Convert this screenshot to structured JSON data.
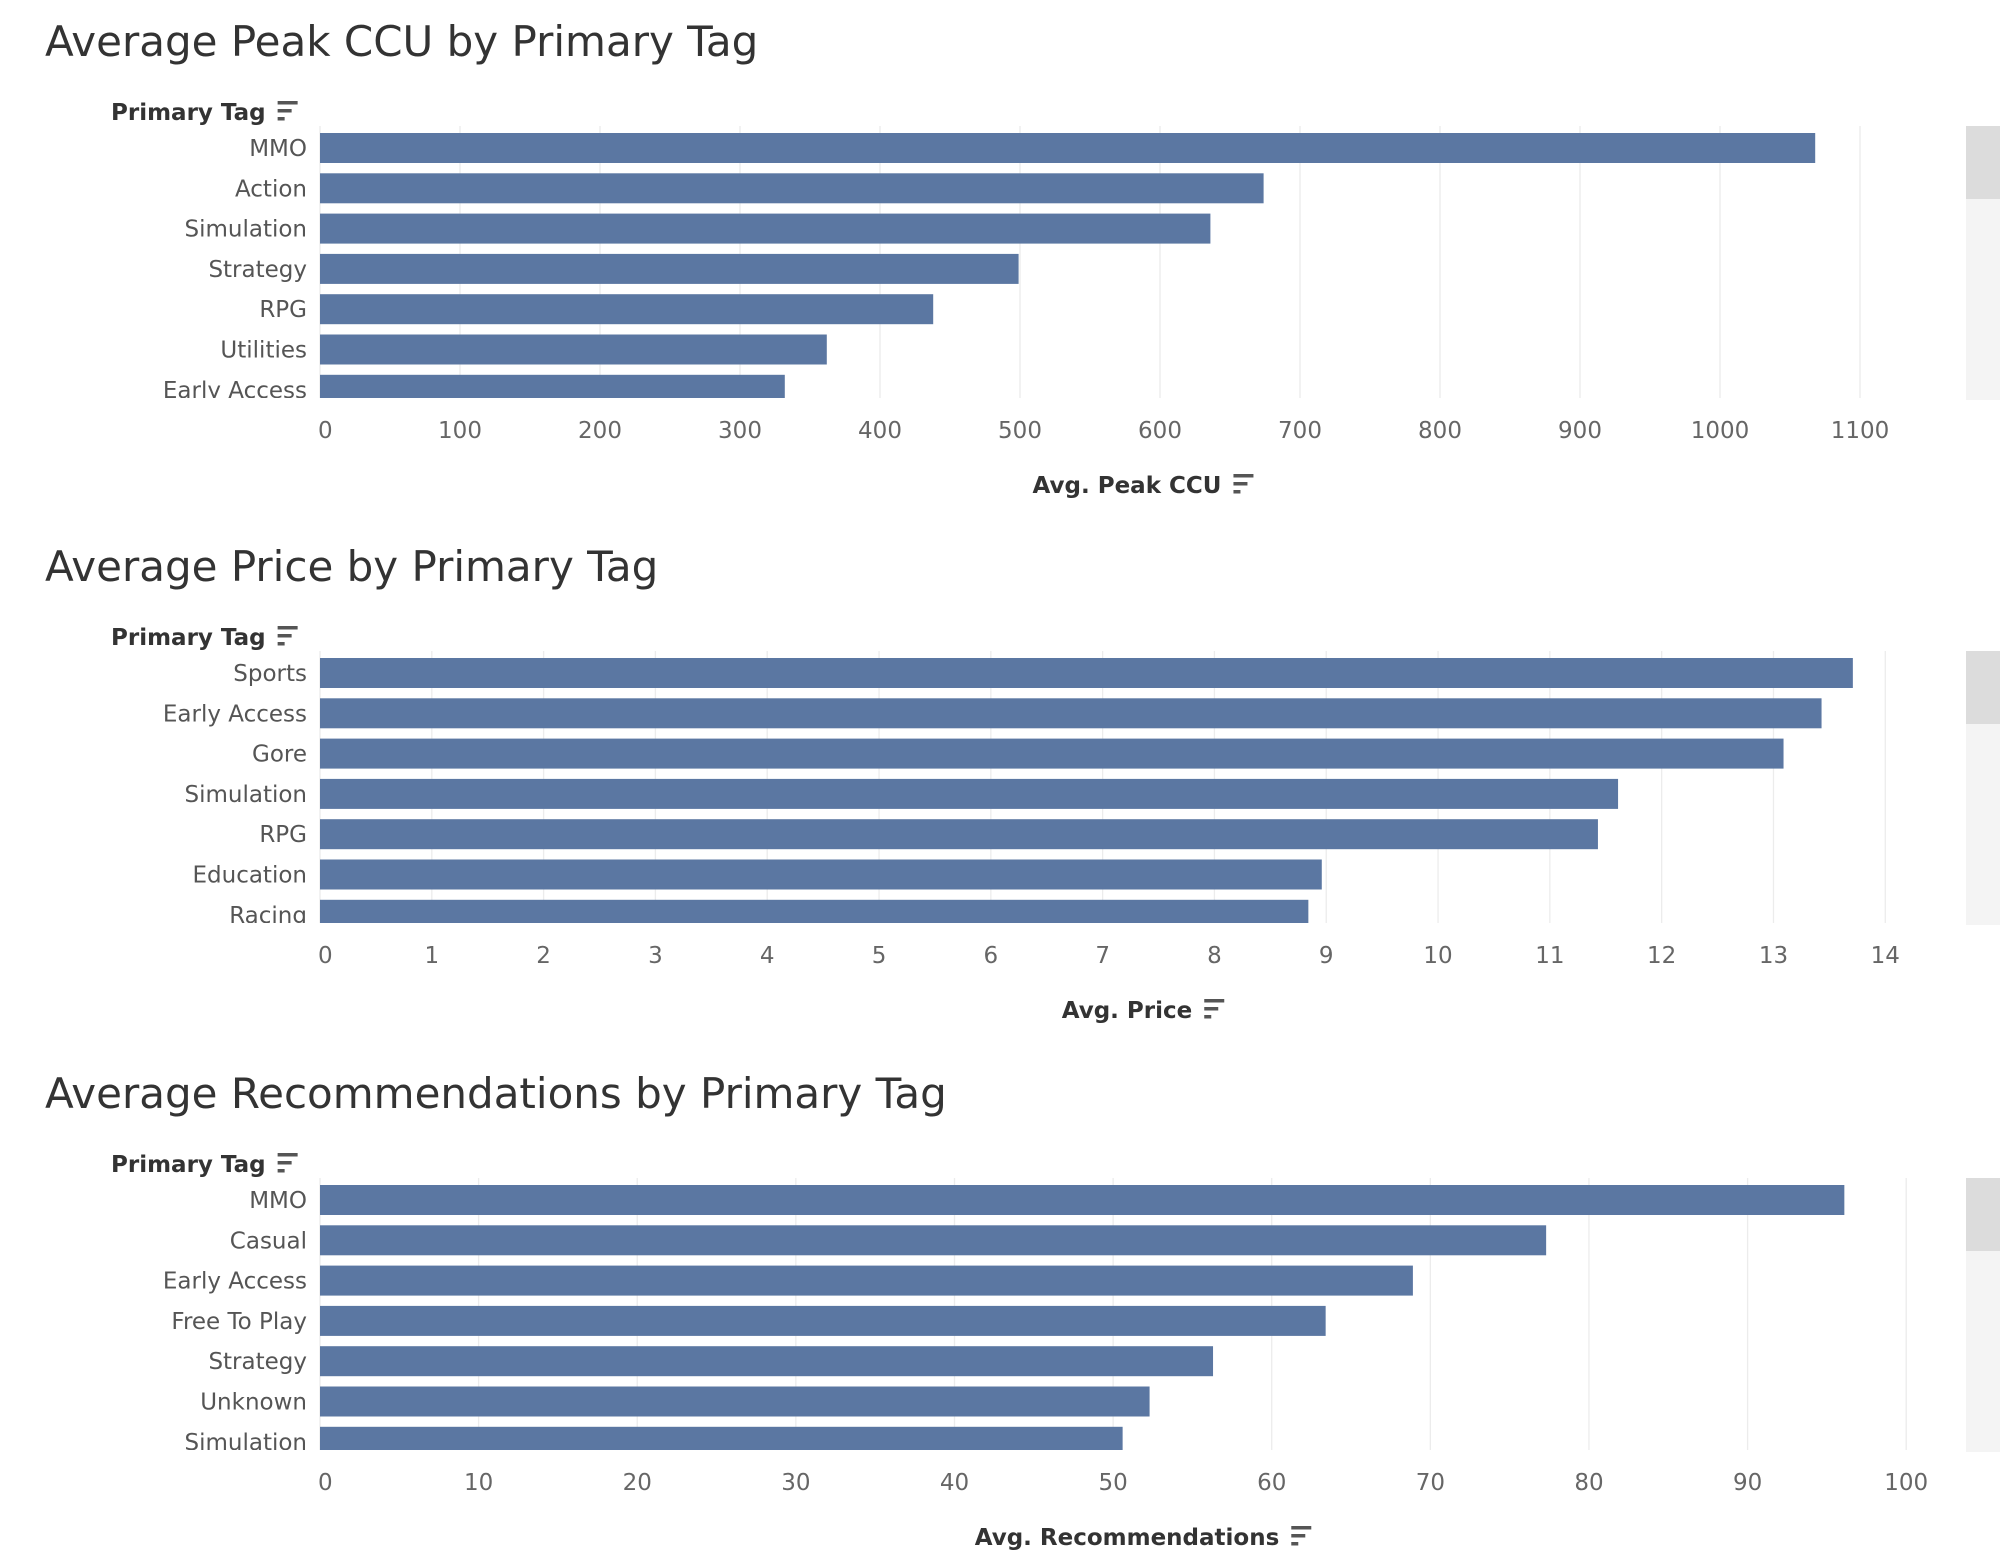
{
  "chart_data": [
    {
      "type": "bar",
      "orientation": "horizontal",
      "title": "Average Peak CCU by Primary Tag",
      "row_header": "Primary Tag",
      "xlabel": "Avg. Peak CCU",
      "categories": [
        "MMO",
        "Action",
        "Simulation",
        "Strategy",
        "RPG",
        "Utilities",
        "Early Access"
      ],
      "values": [
        1068,
        674,
        636,
        499,
        438,
        362,
        332
      ],
      "xlim": [
        0,
        1150
      ],
      "xticks": [
        0,
        100,
        200,
        300,
        400,
        500,
        600,
        700,
        800,
        900,
        1000,
        1100
      ],
      "grid": true,
      "color": "#5b77a2"
    },
    {
      "type": "bar",
      "orientation": "horizontal",
      "title": "Average Price by Primary Tag",
      "row_header": "Primary Tag",
      "xlabel": "Avg. Price",
      "categories": [
        "Sports",
        "Early Access",
        "Gore",
        "Simulation",
        "RPG",
        "Education",
        "Racing"
      ],
      "values": [
        13.71,
        13.43,
        13.09,
        11.61,
        11.43,
        8.96,
        8.84
      ],
      "xlim": [
        0,
        14.4
      ],
      "xticks": [
        0,
        1,
        2,
        3,
        4,
        5,
        6,
        7,
        8,
        9,
        10,
        11,
        12,
        13,
        14
      ],
      "grid": true,
      "color": "#5b77a2"
    },
    {
      "type": "bar",
      "orientation": "horizontal",
      "title": "Average Recommendations by Primary Tag",
      "row_header": "Primary Tag",
      "xlabel": "Avg. Recommendations",
      "categories": [
        "MMO",
        "Casual",
        "Early Access",
        "Free To Play",
        "Strategy",
        "Unknown",
        "Simulation"
      ],
      "values": [
        96.1,
        77.3,
        68.9,
        63.4,
        56.3,
        52.3,
        50.6
      ],
      "xlim": [
        0,
        101.5
      ],
      "xticks": [
        0,
        10,
        20,
        30,
        40,
        50,
        60,
        70,
        80,
        90,
        100
      ],
      "grid": true,
      "color": "#5b77a2"
    }
  ]
}
